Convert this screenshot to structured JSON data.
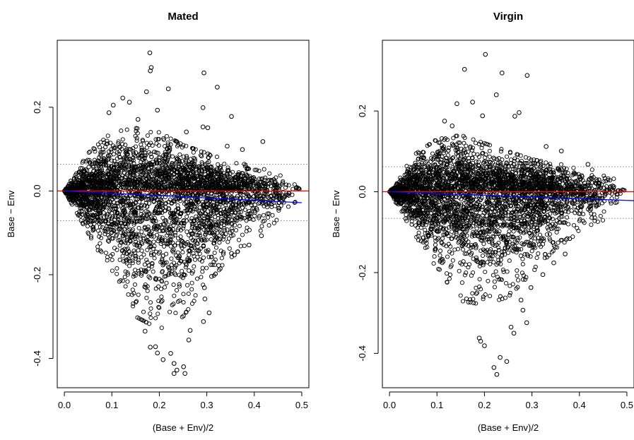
{
  "chart_data": [
    {
      "type": "scatter",
      "title": "Mated",
      "xlabel": "(Base + Env)/2",
      "ylabel": "Base − Env",
      "xlim": [
        -0.015,
        0.515
      ],
      "ylim": [
        -0.47,
        0.36
      ],
      "x_ticks": [
        0.0,
        0.1,
        0.2,
        0.3,
        0.4,
        0.5
      ],
      "x_tick_labels": [
        "0.0",
        "0.1",
        "0.2",
        "0.3",
        "0.4",
        "0.5"
      ],
      "y_ticks": [
        -0.4,
        -0.2,
        0.0,
        0.2
      ],
      "y_tick_labels": [
        "-0.4",
        "-0.2",
        "0.0",
        "0.2"
      ],
      "grid": false,
      "legend": "none",
      "reference_lines": [
        {
          "kind": "horizontal",
          "y": 0.0,
          "color": "#ff0000",
          "style": "solid"
        },
        {
          "kind": "horizontal",
          "y": 0.064,
          "color": "#808080",
          "style": "dotted"
        },
        {
          "kind": "horizontal",
          "y": -0.071,
          "color": "#808080",
          "style": "dotted"
        },
        {
          "kind": "trend",
          "x": [
            0.0,
            0.5
          ],
          "y": [
            0.0,
            -0.028
          ],
          "color": "#0000ff",
          "style": "solid"
        }
      ],
      "density_envelope": {
        "x": [
          0.0,
          0.05,
          0.1,
          0.15,
          0.2,
          0.25,
          0.3,
          0.35,
          0.4,
          0.45,
          0.5
        ],
        "upper": [
          0.0,
          0.09,
          0.14,
          0.15,
          0.14,
          0.11,
          0.09,
          0.07,
          0.06,
          0.04,
          0.01
        ],
        "lower": [
          0.0,
          -0.1,
          -0.2,
          -0.3,
          -0.33,
          -0.3,
          -0.22,
          -0.16,
          -0.11,
          -0.07,
          -0.01
        ]
      },
      "points": [
        {
          "x": 0.18,
          "y": 0.33
        },
        {
          "x": 0.183,
          "y": 0.295
        },
        {
          "x": 0.181,
          "y": 0.287
        },
        {
          "x": 0.294,
          "y": 0.282
        },
        {
          "x": 0.322,
          "y": 0.248
        },
        {
          "x": 0.219,
          "y": 0.244
        },
        {
          "x": 0.173,
          "y": 0.237
        },
        {
          "x": 0.123,
          "y": 0.222
        },
        {
          "x": 0.137,
          "y": 0.212
        },
        {
          "x": 0.103,
          "y": 0.205
        },
        {
          "x": 0.094,
          "y": 0.187
        },
        {
          "x": 0.292,
          "y": 0.199
        },
        {
          "x": 0.196,
          "y": 0.193
        },
        {
          "x": 0.352,
          "y": 0.178
        },
        {
          "x": 0.155,
          "y": 0.171
        },
        {
          "x": 0.292,
          "y": 0.153
        },
        {
          "x": 0.302,
          "y": 0.151
        },
        {
          "x": 0.257,
          "y": 0.141
        },
        {
          "x": 0.418,
          "y": 0.118
        },
        {
          "x": 0.343,
          "y": 0.107
        },
        {
          "x": 0.375,
          "y": 0.099
        },
        {
          "x": 0.181,
          "y": -0.373
        },
        {
          "x": 0.196,
          "y": -0.387
        },
        {
          "x": 0.224,
          "y": -0.388
        },
        {
          "x": 0.208,
          "y": -0.403
        },
        {
          "x": 0.231,
          "y": -0.412
        },
        {
          "x": 0.251,
          "y": -0.42
        },
        {
          "x": 0.237,
          "y": -0.428
        },
        {
          "x": 0.254,
          "y": -0.436
        },
        {
          "x": 0.231,
          "y": -0.436
        },
        {
          "x": 0.192,
          "y": -0.372
        },
        {
          "x": 0.17,
          "y": -0.335
        },
        {
          "x": 0.262,
          "y": -0.356
        },
        {
          "x": 0.293,
          "y": -0.312
        },
        {
          "x": 0.265,
          "y": -0.333
        },
        {
          "x": 0.305,
          "y": -0.291
        },
        {
          "x": 0.295,
          "y": -0.231
        },
        {
          "x": 0.31,
          "y": -0.204
        },
        {
          "x": 0.325,
          "y": -0.178
        },
        {
          "x": 0.352,
          "y": -0.149
        },
        {
          "x": 0.358,
          "y": -0.153
        },
        {
          "x": 0.389,
          "y": -0.129
        },
        {
          "x": 0.415,
          "y": -0.107
        },
        {
          "x": 0.296,
          "y": -0.258
        }
      ]
    },
    {
      "type": "scatter",
      "title": "Virgin",
      "xlabel": "(Base + Env)/2",
      "ylabel": "Base − Env",
      "xlim": [
        -0.015,
        0.515
      ],
      "ylim": [
        -0.485,
        0.375
      ],
      "x_ticks": [
        0.0,
        0.1,
        0.2,
        0.3,
        0.4,
        0.5
      ],
      "x_tick_labels": [
        "0.0",
        "0.1",
        "0.2",
        "0.3",
        "0.4",
        "0.5"
      ],
      "y_ticks": [
        -0.4,
        -0.2,
        0.0,
        0.2
      ],
      "y_tick_labels": [
        "-0.4",
        "-0.2",
        "0.0",
        "0.2"
      ],
      "grid": false,
      "legend": "none",
      "reference_lines": [
        {
          "kind": "horizontal",
          "y": 0.0,
          "color": "#ff0000",
          "style": "solid"
        },
        {
          "kind": "horizontal",
          "y": 0.062,
          "color": "#808080",
          "style": "dotted"
        },
        {
          "kind": "horizontal",
          "y": -0.066,
          "color": "#808080",
          "style": "dotted"
        },
        {
          "kind": "trend",
          "x": [
            0.0,
            0.515
          ],
          "y": [
            0.0,
            -0.022
          ],
          "color": "#0000ff",
          "style": "solid"
        }
      ],
      "density_envelope": {
        "x": [
          0.0,
          0.05,
          0.1,
          0.15,
          0.2,
          0.25,
          0.3,
          0.35,
          0.4,
          0.45,
          0.5
        ],
        "upper": [
          0.0,
          0.09,
          0.13,
          0.14,
          0.12,
          0.1,
          0.08,
          0.07,
          0.06,
          0.05,
          0.01
        ],
        "lower": [
          0.0,
          -0.1,
          -0.19,
          -0.27,
          -0.28,
          -0.26,
          -0.2,
          -0.14,
          -0.1,
          -0.07,
          -0.01
        ]
      },
      "points": [
        {
          "x": 0.202,
          "y": 0.34
        },
        {
          "x": 0.158,
          "y": 0.303
        },
        {
          "x": 0.237,
          "y": 0.294
        },
        {
          "x": 0.29,
          "y": 0.288
        },
        {
          "x": 0.225,
          "y": 0.24
        },
        {
          "x": 0.175,
          "y": 0.222
        },
        {
          "x": 0.142,
          "y": 0.218
        },
        {
          "x": 0.273,
          "y": 0.196
        },
        {
          "x": 0.264,
          "y": 0.187
        },
        {
          "x": 0.196,
          "y": 0.188
        },
        {
          "x": 0.116,
          "y": 0.175
        },
        {
          "x": 0.132,
          "y": 0.163
        },
        {
          "x": 0.33,
          "y": 0.112
        },
        {
          "x": 0.362,
          "y": 0.101
        },
        {
          "x": 0.418,
          "y": 0.068
        },
        {
          "x": 0.226,
          "y": -0.452
        },
        {
          "x": 0.22,
          "y": -0.435
        },
        {
          "x": 0.247,
          "y": -0.42
        },
        {
          "x": 0.233,
          "y": -0.41
        },
        {
          "x": 0.2,
          "y": -0.381
        },
        {
          "x": 0.192,
          "y": -0.37
        },
        {
          "x": 0.189,
          "y": -0.362
        },
        {
          "x": 0.262,
          "y": -0.35
        },
        {
          "x": 0.256,
          "y": -0.335
        },
        {
          "x": 0.281,
          "y": -0.293
        },
        {
          "x": 0.277,
          "y": -0.268
        },
        {
          "x": 0.298,
          "y": -0.237
        },
        {
          "x": 0.323,
          "y": -0.205
        },
        {
          "x": 0.346,
          "y": -0.176
        },
        {
          "x": 0.37,
          "y": -0.154
        },
        {
          "x": 0.349,
          "y": -0.137
        },
        {
          "x": 0.289,
          "y": -0.324
        }
      ]
    }
  ]
}
